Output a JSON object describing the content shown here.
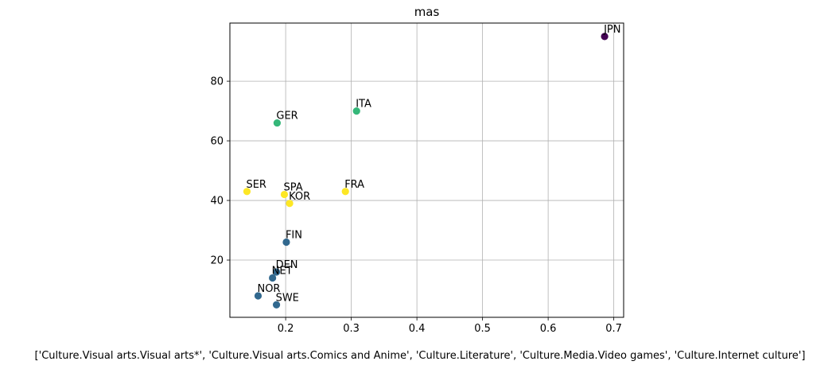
{
  "chart_data": {
    "type": "scatter",
    "title": "mas",
    "xlabel": "['Culture.Visual arts.Visual arts*', 'Culture.Visual arts.Comics and Anime', 'Culture.Literature', 'Culture.Media.Video games', 'Culture.Internet culture']",
    "ylabel": "",
    "xlim": [
      0.115,
      0.715
    ],
    "ylim": [
      0.8,
      99.5
    ],
    "xticks": [
      0.2,
      0.3,
      0.4,
      0.5,
      0.6,
      0.7
    ],
    "xtick_labels": [
      "0.2",
      "0.3",
      "0.4",
      "0.5",
      "0.6",
      "0.7"
    ],
    "yticks": [
      20,
      40,
      60,
      80
    ],
    "ytick_labels": [
      "20",
      "40",
      "60",
      "80"
    ],
    "grid": true,
    "points": [
      {
        "label": "JPN",
        "x": 0.686,
        "y": 95,
        "color": "#440154"
      },
      {
        "label": "ITA",
        "x": 0.308,
        "y": 70,
        "color": "#35b779"
      },
      {
        "label": "GER",
        "x": 0.187,
        "y": 66,
        "color": "#35b779"
      },
      {
        "label": "SER",
        "x": 0.141,
        "y": 43,
        "color": "#fde725"
      },
      {
        "label": "SPA",
        "x": 0.198,
        "y": 42,
        "color": "#fde725"
      },
      {
        "label": "FRA",
        "x": 0.291,
        "y": 43,
        "color": "#fde725"
      },
      {
        "label": "KOR",
        "x": 0.206,
        "y": 39,
        "color": "#fde725"
      },
      {
        "label": "FIN",
        "x": 0.201,
        "y": 26,
        "color": "#31688e"
      },
      {
        "label": "DEN",
        "x": 0.186,
        "y": 16,
        "color": "#31688e"
      },
      {
        "label": "NET",
        "x": 0.18,
        "y": 14,
        "color": "#31688e"
      },
      {
        "label": "NOR",
        "x": 0.158,
        "y": 8,
        "color": "#31688e"
      },
      {
        "label": "SWE",
        "x": 0.186,
        "y": 5,
        "color": "#31688e"
      }
    ]
  }
}
